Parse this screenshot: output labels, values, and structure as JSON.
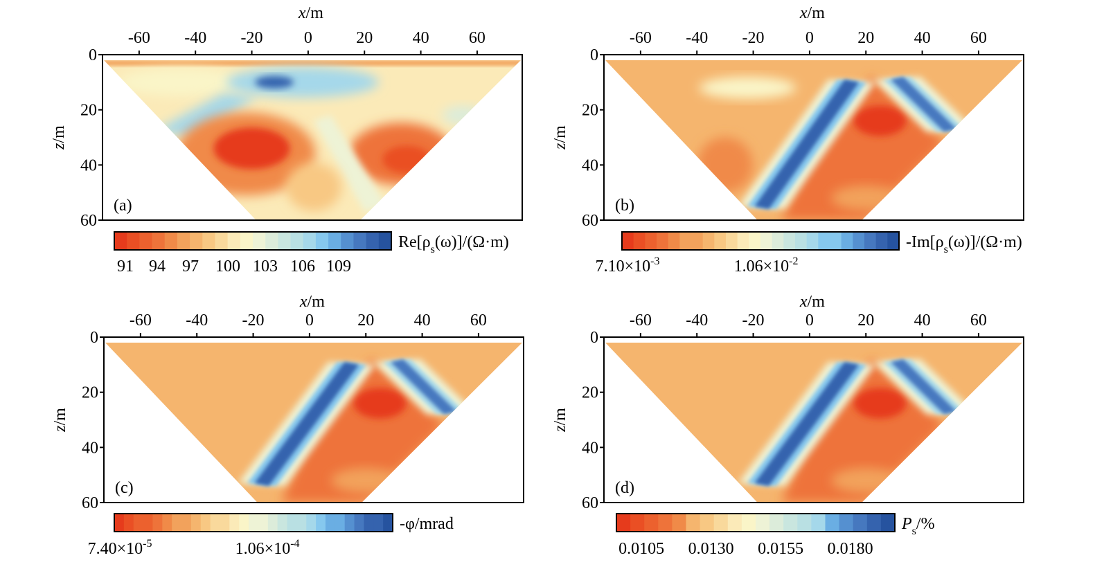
{
  "colormap": [
    "#e63b1c",
    "#ea4f24",
    "#ec612e",
    "#ee733a",
    "#f08a48",
    "#f2a25c",
    "#f5b56e",
    "#f8c883",
    "#f9d99c",
    "#fbeab8",
    "#faf5c8",
    "#eef3d6",
    "#dcecda",
    "#c9e6df",
    "#b9e0e3",
    "#a5d8ea",
    "#86c8ee",
    "#6aaee3",
    "#5590d0",
    "#4678bf",
    "#3563ae",
    "#26539f"
  ],
  "chart_data": [
    {
      "type": "heatmap",
      "panel_label": "(a)",
      "xlabel_var": "x",
      "xlabel_unit": "/m",
      "ylabel_var": "z",
      "ylabel_unit": "/m",
      "xticks": [
        "-60",
        "-40",
        "-20",
        "0",
        "20",
        "40",
        "60"
      ],
      "xtick_values": [
        -60,
        -40,
        -20,
        0,
        20,
        40,
        60
      ],
      "yticks": [
        "0",
        "20",
        "40",
        "60"
      ],
      "ytick_values": [
        0,
        20,
        40,
        60
      ],
      "xlim": [
        -73,
        76
      ],
      "ylim": [
        0,
        60
      ],
      "domain_shape": "inverted trapezoid: top z≈2 from x≈-72 to x≈75, bottom z≈60 from x≈-18 to x≈18",
      "colorbar": {
        "label_main": "Re[ρ",
        "label_sub": "s",
        "label_tail": "(ω)]/(Ω·m)",
        "tick_labels": [
          "91",
          "94",
          "97",
          "100",
          "103",
          "106",
          "109"
        ],
        "range": [
          90,
          112
        ],
        "levels": 22
      },
      "features": [
        {
          "kind": "low",
          "x": -20,
          "z": 33,
          "value": 90.5
        },
        {
          "kind": "low",
          "x": 33,
          "z": 37,
          "value": 91.5
        },
        {
          "kind": "high",
          "x": -12,
          "z": 10,
          "value": 111
        },
        {
          "kind": "high",
          "x": -48,
          "z": 25,
          "value": 106
        },
        {
          "kind": "mid",
          "x": 5,
          "z": 48,
          "value": 96.5
        }
      ]
    },
    {
      "type": "heatmap",
      "panel_label": "(b)",
      "xlabel_var": "x",
      "xlabel_unit": "/m",
      "ylabel_var": "z",
      "ylabel_unit": "/m",
      "xticks": [
        "-60",
        "-40",
        "-20",
        "0",
        "20",
        "40",
        "60"
      ],
      "xtick_values": [
        -60,
        -40,
        -20,
        0,
        20,
        40,
        60
      ],
      "yticks": [
        "0",
        "20",
        "40",
        "60"
      ],
      "ytick_values": [
        0,
        20,
        40,
        60
      ],
      "xlim": [
        -73,
        76
      ],
      "ylim": [
        0,
        60
      ],
      "colorbar": {
        "label_main": "-Im[ρ",
        "label_sub": "s",
        "label_tail": "(ω)]/(Ω·m)",
        "tick_labels": [
          "7.10×10⁻³",
          "1.06×10⁻²"
        ],
        "tick_mantissa": [
          "7.10×10",
          "1.06×10"
        ],
        "tick_exp": [
          "-3",
          "-2"
        ],
        "range": [
          0.0071,
          0.0141
        ],
        "levels": 24
      },
      "features": [
        {
          "kind": "low",
          "x": 25,
          "z": 25,
          "value": 0.0071
        },
        {
          "kind": "high",
          "x": 0,
          "z": 25,
          "value": 0.014
        },
        {
          "kind": "high",
          "x": 45,
          "z": 25,
          "value": 0.0135
        }
      ]
    },
    {
      "type": "heatmap",
      "panel_label": "(c)",
      "xlabel_var": "x",
      "xlabel_unit": "/m",
      "ylabel_var": "z",
      "ylabel_unit": "/m",
      "xticks": [
        "-60",
        "-40",
        "-20",
        "0",
        "20",
        "40",
        "60"
      ],
      "xtick_values": [
        -60,
        -40,
        -20,
        0,
        20,
        40,
        60
      ],
      "yticks": [
        "0",
        "20",
        "40",
        "60"
      ],
      "ytick_values": [
        0,
        20,
        40,
        60
      ],
      "xlim": [
        -73,
        76
      ],
      "ylim": [
        0,
        60
      ],
      "colorbar": {
        "label_main": "-φ/mrad",
        "label_sub": "",
        "label_tail": "",
        "tick_labels": [
          "7.40×10⁻⁵",
          "1.06×10⁻⁴"
        ],
        "tick_mantissa": [
          "7.40×10",
          "1.06×10"
        ],
        "tick_exp": [
          "-5",
          "-4"
        ],
        "range": [
          7.4e-05,
          0.000138
        ],
        "levels": 29
      },
      "features": [
        {
          "kind": "low",
          "x": 25,
          "z": 22,
          "value": 7.4e-05
        },
        {
          "kind": "high",
          "x": 0,
          "z": 30,
          "value": 0.000137
        },
        {
          "kind": "high",
          "x": 45,
          "z": 25,
          "value": 0.00013
        }
      ]
    },
    {
      "type": "heatmap",
      "panel_label": "(d)",
      "xlabel_var": "x",
      "xlabel_unit": "/m",
      "ylabel_var": "z",
      "ylabel_unit": "/m",
      "xticks": [
        "-60",
        "-40",
        "-20",
        "0",
        "20",
        "40",
        "60"
      ],
      "xtick_values": [
        -60,
        -40,
        -20,
        0,
        20,
        40,
        60
      ],
      "yticks": [
        "0",
        "20",
        "40",
        "60"
      ],
      "ytick_values": [
        0,
        20,
        40,
        60
      ],
      "xlim": [
        -73,
        76
      ],
      "ylim": [
        0,
        60
      ],
      "colorbar": {
        "label_main": "P",
        "label_sub": "s",
        "label_tail": "/%",
        "tick_labels": [
          "0.0105",
          "0.0130",
          "0.0155",
          "0.0180"
        ],
        "range": [
          0.01,
          0.02
        ],
        "levels": 20
      },
      "features": [
        {
          "kind": "low",
          "x": 25,
          "z": 23,
          "value": 0.01
        },
        {
          "kind": "high",
          "x": 0,
          "z": 30,
          "value": 0.0198
        },
        {
          "kind": "high",
          "x": 45,
          "z": 25,
          "value": 0.019
        }
      ]
    }
  ]
}
